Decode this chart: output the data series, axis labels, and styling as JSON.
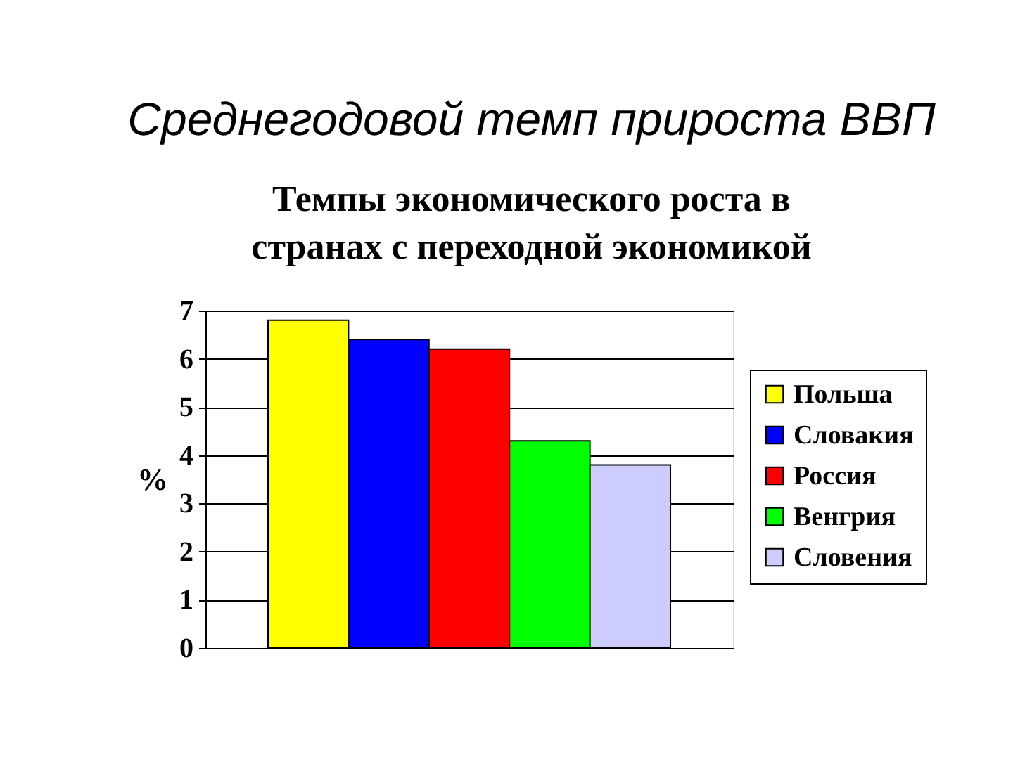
{
  "chart_data": {
    "type": "bar",
    "title": "Среднегодовой темп прироста ВВП",
    "subtitle": "Темпы экономического роста в странах с переходной экономикой",
    "ylabel": "%",
    "categories": [
      null
    ],
    "series": [
      {
        "name": "Польша",
        "color": "#ffff00",
        "values": [
          6.8
        ]
      },
      {
        "name": "Словакия",
        "color": "#0000ff",
        "values": [
          6.4
        ]
      },
      {
        "name": "Россия",
        "color": "#ff0000",
        "values": [
          6.2
        ]
      },
      {
        "name": "Венгрия",
        "color": "#00ff00",
        "values": [
          4.3
        ]
      },
      {
        "name": "Словения",
        "color": "#ccccff",
        "values": [
          3.8
        ]
      }
    ],
    "ylim": [
      0,
      7
    ],
    "yticks": [
      0,
      1,
      2,
      3,
      4,
      5,
      6,
      7
    ],
    "grid": "y",
    "legend": "right",
    "tick_labels": "y"
  }
}
